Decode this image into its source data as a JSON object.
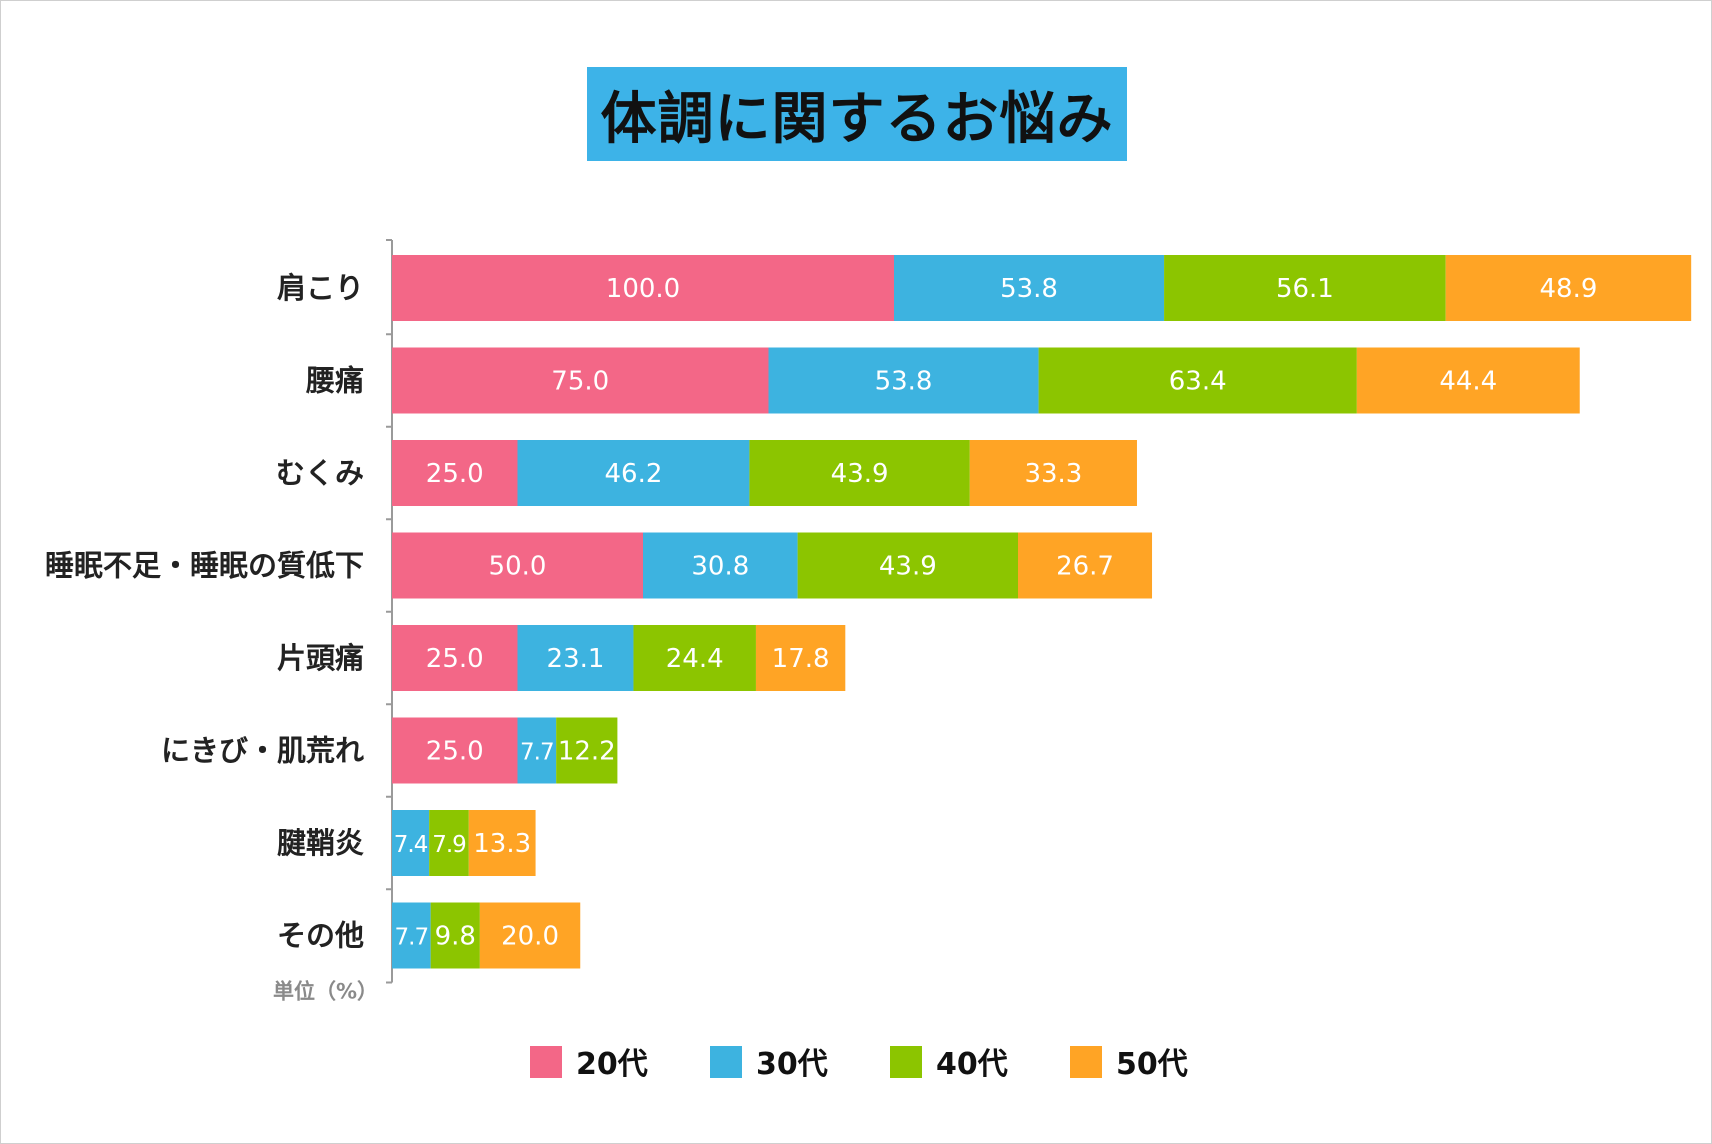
{
  "chart_data": {
    "type": "bar",
    "orientation": "horizontal",
    "stacked": true,
    "title": "体調に関するお悩み",
    "unit_label": "単位（%）",
    "categories": [
      "肩こり",
      "腰痛",
      "むくみ",
      "睡眠不足・睡眠の質低下",
      "片頭痛",
      "にきび・肌荒れ",
      "腱鞘炎",
      "その他"
    ],
    "series": [
      {
        "name": "20代",
        "color": "#f36787",
        "values": [
          100.0,
          75.0,
          25.0,
          50.0,
          25.0,
          25.0,
          0,
          0
        ]
      },
      {
        "name": "30代",
        "color": "#3db3e0",
        "values": [
          53.8,
          53.8,
          46.2,
          30.8,
          23.1,
          7.7,
          7.4,
          7.7
        ]
      },
      {
        "name": "40代",
        "color": "#8cc500",
        "values": [
          56.1,
          63.4,
          43.9,
          43.9,
          24.4,
          12.2,
          7.9,
          9.8
        ]
      },
      {
        "name": "50代",
        "color": "#ffa425",
        "values": [
          48.9,
          44.4,
          33.3,
          26.7,
          17.8,
          0,
          13.3,
          20.0
        ]
      }
    ],
    "legend_position": "bottom",
    "grid": false
  }
}
